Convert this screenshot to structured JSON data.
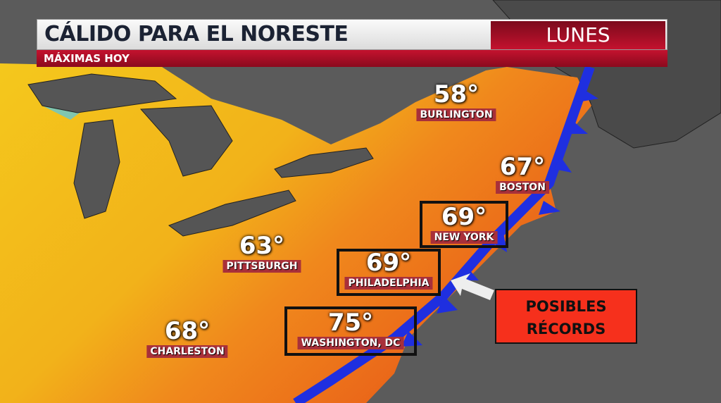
{
  "header": {
    "title": "CÁLIDO PARA EL NORESTE",
    "day": "LUNES",
    "subtitle": "MÁXIMAS HOY"
  },
  "cities": [
    {
      "name": "BURLINGTON",
      "temp": "58°"
    },
    {
      "name": "BOSTON",
      "temp": "67°"
    },
    {
      "name": "NEW YORK",
      "temp": "69°"
    },
    {
      "name": "PHILADELPHIA",
      "temp": "69°"
    },
    {
      "name": "PITTSBURGH",
      "temp": "63°"
    },
    {
      "name": "WASHINGTON, DC",
      "temp": "75°"
    },
    {
      "name": "CHARLESTON",
      "temp": "68°"
    }
  ],
  "callout": {
    "line1": "POSIBLES",
    "line2": "RÉCORDS"
  },
  "colors": {
    "land_warm": "#f07a1a",
    "land_mild": "#f2c21c",
    "front": "#1f2fe0",
    "callout": "#f6301c",
    "banner": "#c4122e"
  }
}
